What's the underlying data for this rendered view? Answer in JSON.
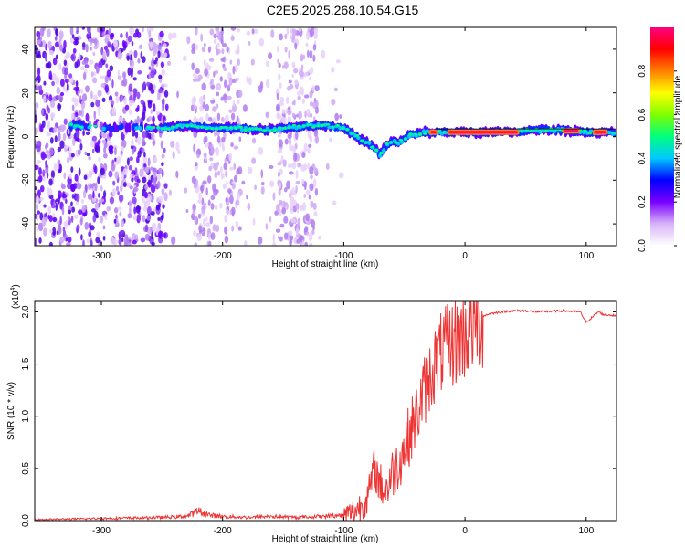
{
  "title": "C2E5.2025.268.10.54.G15",
  "chart_data": [
    {
      "type": "heatmap",
      "xlabel": "Height of straight line (km)",
      "ylabel": "Frequency (Hz)",
      "xlim": [
        -355,
        125
      ],
      "ylim": [
        -50,
        50
      ],
      "xticks": [
        -300,
        -200,
        -100,
        0,
        100
      ],
      "xtick_labels": [
        "-300",
        "-200",
        "-100",
        "0",
        "100"
      ],
      "yticks": [
        -40,
        -20,
        0,
        20,
        40
      ],
      "ytick_labels": [
        "-40",
        "-20",
        "0",
        "20",
        "40"
      ],
      "colorbar": {
        "label": "Normalized spectral amplitude",
        "range": [
          0,
          1
        ],
        "ticks": [
          0.0,
          0.2,
          0.4,
          0.6,
          0.8
        ],
        "tick_labels": [
          "0.0",
          "0.2",
          "0.4",
          "0.6",
          "0.8"
        ],
        "colormap": [
          "#ffffff",
          "#d8b4f8",
          "#7a00ff",
          "#0000ff",
          "#00c8ff",
          "#00ff80",
          "#80ff00",
          "#ffff00",
          "#ff8000",
          "#ff0000",
          "#ff0080"
        ]
      },
      "ridge_x": [
        -320,
        -300,
        -280,
        -260,
        -245,
        -230,
        -210,
        -190,
        -170,
        -150,
        -130,
        -115,
        -100,
        -90,
        -80,
        -75,
        -70,
        -65,
        -60,
        -55,
        -50,
        -45,
        -40,
        -35,
        -30,
        -20,
        -10,
        0,
        20,
        40,
        60,
        80,
        100,
        120
      ],
      "ridge_y": [
        5,
        4,
        4,
        4,
        4,
        5,
        4,
        4,
        3,
        4,
        5,
        5,
        4,
        0,
        -3,
        -5,
        -8,
        -4,
        -2,
        -3,
        -1,
        1,
        1,
        2,
        2,
        2,
        2,
        2,
        2,
        2,
        3,
        3,
        2,
        2
      ]
    },
    {
      "type": "line",
      "xlabel": "Height of straight line (km)",
      "ylabel": "SNR (10 * v/v)",
      "scale_label": "(x10",
      "scale_exp": "4",
      "scale_close": ")",
      "xlim": [
        -355,
        125
      ],
      "ylim": [
        0,
        2.1
      ],
      "xticks": [
        -300,
        -200,
        -100,
        0,
        100
      ],
      "xtick_labels": [
        "-300",
        "-200",
        "-100",
        "0",
        "100"
      ],
      "yticks": [
        0,
        0.5,
        1.0,
        1.5,
        2.0
      ],
      "ytick_labels": [
        "0.0",
        "0.5",
        "1.0",
        "1.5",
        "2.0"
      ],
      "series": [
        {
          "name": "SNR",
          "color": "#ee3333",
          "x": [
            -355,
            -300,
            -250,
            -230,
            -220,
            -210,
            -200,
            -180,
            -160,
            -140,
            -120,
            -100,
            -90,
            -80,
            -75,
            -70,
            -65,
            -60,
            -55,
            -50,
            -45,
            -40,
            -35,
            -30,
            -25,
            -20,
            -15,
            -10,
            -5,
            0,
            5,
            10,
            15,
            20,
            30,
            40,
            50,
            60,
            80,
            95,
            100,
            105,
            110,
            115,
            120,
            125
          ],
          "y": [
            0.01,
            0.02,
            0.03,
            0.04,
            0.09,
            0.05,
            0.04,
            0.03,
            0.04,
            0.03,
            0.04,
            0.05,
            0.1,
            0.22,
            0.5,
            0.35,
            0.3,
            0.45,
            0.55,
            0.7,
            0.85,
            1.0,
            1.2,
            1.35,
            1.5,
            1.6,
            1.65,
            1.7,
            1.75,
            1.8,
            1.88,
            1.93,
            1.96,
            1.98,
            2.0,
            2.01,
            2.01,
            2.0,
            2.01,
            2.0,
            1.9,
            1.95,
            2.0,
            1.97,
            1.97,
            1.96
          ]
        }
      ]
    }
  ]
}
